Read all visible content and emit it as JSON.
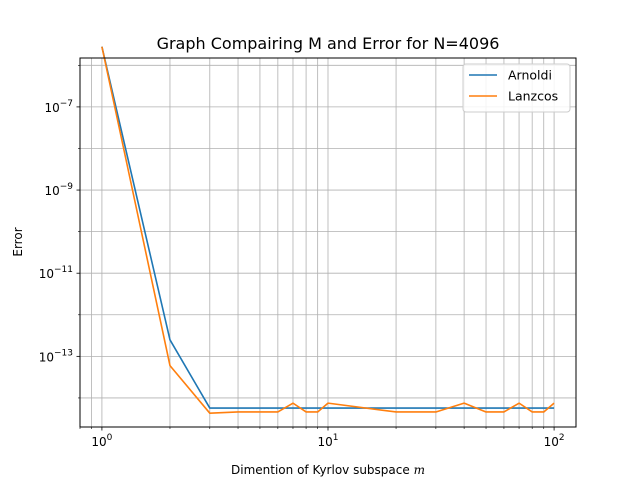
{
  "chart_data": {
    "type": "line",
    "title": "Graph Compairing M and Error for N=4096",
    "xlabel": "Dimention of Kyrlov subspace ",
    "xlabel_math": "m",
    "ylabel": "Error",
    "xscale": "log",
    "yscale": "log",
    "xlim": [
      0.8,
      125
    ],
    "ylim": [
      2e-15,
      1.5e-06
    ],
    "grid": "major and minor",
    "legend_position": "top-right",
    "x_ticks": [
      {
        "value": 1,
        "base": "10",
        "exp": "0"
      },
      {
        "value": 10,
        "base": "10",
        "exp": "1"
      },
      {
        "value": 100,
        "base": "10",
        "exp": "2"
      }
    ],
    "y_ticks": [
      {
        "value": 1e-07,
        "base": "10",
        "exp": "−7"
      },
      {
        "value": 1e-09,
        "base": "10",
        "exp": "−9"
      },
      {
        "value": 1e-11,
        "base": "10",
        "exp": "−11"
      },
      {
        "value": 1e-13,
        "base": "10",
        "exp": "−13"
      }
    ],
    "series": [
      {
        "name": "Arnoldi",
        "color": "#1f77b4",
        "x": [
          1,
          2,
          3,
          4,
          5,
          6,
          7,
          8,
          9,
          10,
          20,
          30,
          40,
          50,
          60,
          70,
          80,
          90,
          100
        ],
        "y": [
          2.8e-06,
          2.5e-13,
          5.7e-15,
          5.7e-15,
          5.7e-15,
          5.7e-15,
          5.7e-15,
          5.7e-15,
          5.7e-15,
          5.7e-15,
          5.7e-15,
          5.7e-15,
          5.7e-15,
          5.7e-15,
          5.7e-15,
          5.7e-15,
          5.7e-15,
          5.7e-15,
          5.7e-15
        ]
      },
      {
        "name": "Lanzcos",
        "color": "#ff7f0e",
        "x": [
          1,
          2,
          3,
          4,
          5,
          6,
          7,
          8,
          9,
          10,
          20,
          30,
          40,
          50,
          60,
          70,
          80,
          90,
          100
        ],
        "y": [
          2.8e-06,
          6e-14,
          4.3e-15,
          4.6e-15,
          4.6e-15,
          4.6e-15,
          7.5e-15,
          4.6e-15,
          4.6e-15,
          7.5e-15,
          4.6e-15,
          4.6e-15,
          7.5e-15,
          4.6e-15,
          4.6e-15,
          7.5e-15,
          4.6e-15,
          4.6e-15,
          7.5e-15
        ]
      }
    ]
  }
}
